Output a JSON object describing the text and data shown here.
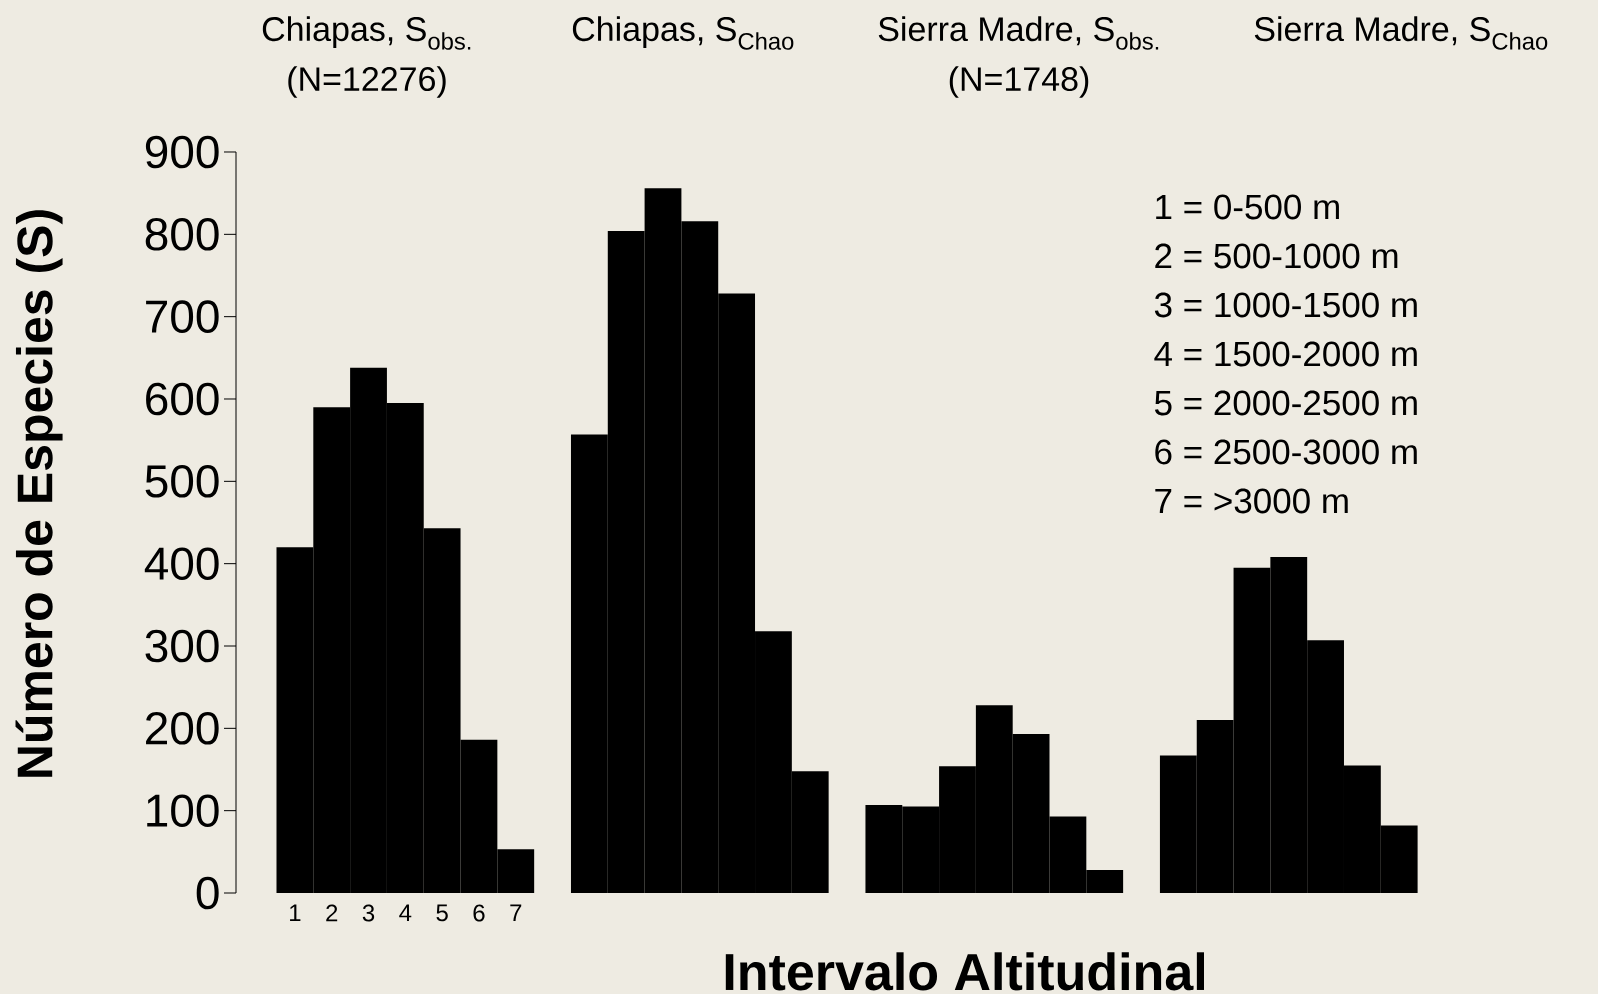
{
  "chart_data": {
    "type": "bar",
    "xlabel": "Intervalo Altitudinal",
    "ylabel": "Número de Especies (S)",
    "categories": [
      "1",
      "2",
      "3",
      "4",
      "5",
      "6",
      "7",
      null,
      null,
      null,
      null,
      null,
      null,
      null,
      null,
      null,
      null,
      null,
      null,
      null,
      null,
      null,
      null,
      null,
      null,
      null,
      null,
      null,
      null,
      null,
      null
    ],
    "values": [
      420,
      590,
      638,
      595,
      443,
      186,
      53,
      null,
      557,
      804,
      856,
      816,
      728,
      318,
      148,
      null,
      107,
      105,
      154,
      228,
      193,
      93,
      28,
      null,
      167,
      210,
      395,
      408,
      307,
      155,
      82
    ],
    "color": "#000000",
    "ylim": [
      0,
      900
    ],
    "yticks": [
      0,
      100,
      200,
      300,
      400,
      500,
      600,
      700,
      800,
      900
    ],
    "annotations": [
      "Chiapas, S$_{obs.}$",
      "(N=12276)",
      "Chiapas, S$_{Chao}$",
      "Sierra Madre, S$_{obs.}$",
      "(N=1748)",
      "Sierra Madre, S$_{Chao}$",
      "1 = 0-500 m",
      "2 = 500-1000 m",
      "3 = 1000-1500 m",
      "4 = 1500-2000 m",
      "5 = 2000-2500 m",
      "6 = 2500-3000 m",
      "7 = >3000 m"
    ]
  }
}
